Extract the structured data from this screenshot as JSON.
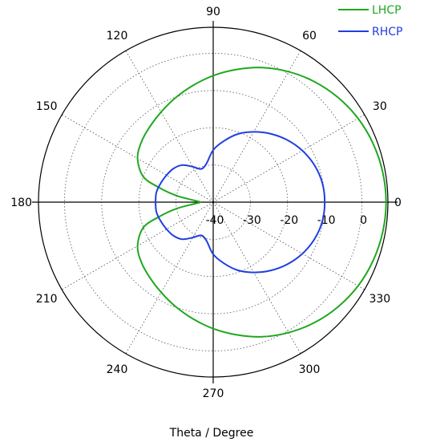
{
  "chart_data": {
    "type": "polar-line",
    "title": "",
    "xlabel": "Theta / Degree",
    "angle_ticks": [
      "0",
      "30",
      "60",
      "90",
      "120",
      "150",
      "180",
      "210",
      "240",
      "270",
      "300",
      "330"
    ],
    "angle_tick_values": [
      0,
      30,
      60,
      90,
      120,
      150,
      180,
      210,
      240,
      270,
      300,
      330
    ],
    "radial_ticks": [
      "-40",
      "-30",
      "-20",
      "-10",
      "0"
    ],
    "radial_tick_values": [
      -40,
      -30,
      -20,
      -10,
      0
    ],
    "rlim": [
      -40,
      7
    ],
    "grid": true,
    "legend_position": "top-right",
    "series": [
      {
        "name": "LHCP",
        "color": "#1fa81f",
        "theta": [
          0,
          10,
          20,
          30,
          40,
          50,
          60,
          70,
          80,
          90,
          100,
          110,
          120,
          130,
          140,
          150,
          160,
          165,
          170,
          175,
          180,
          185,
          190,
          195,
          200,
          210,
          220,
          230,
          240,
          250,
          260,
          270,
          280,
          290,
          300,
          310,
          320,
          330,
          340,
          350,
          360
        ],
        "r": [
          6.5,
          6.3,
          5.8,
          5.0,
          3.8,
          2.3,
          0.5,
          -1.5,
          -3.8,
          -6.0,
          -8.2,
          -10.2,
          -12.0,
          -13.5,
          -14.8,
          -16.5,
          -20,
          -25,
          -30,
          -35,
          -36.5,
          -35,
          -30,
          -25,
          -20,
          -16.5,
          -14.8,
          -13.5,
          -12.0,
          -10.2,
          -8.2,
          -6.0,
          -3.8,
          -1.5,
          0.5,
          2.3,
          3.8,
          5.0,
          5.8,
          6.3,
          6.5
        ]
      },
      {
        "name": "RHCP",
        "color": "#1f3ee0",
        "theta": [
          0,
          10,
          20,
          30,
          40,
          50,
          60,
          70,
          80,
          90,
          100,
          110,
          120,
          130,
          140,
          150,
          160,
          170,
          180,
          190,
          200,
          210,
          220,
          230,
          240,
          250,
          260,
          270,
          280,
          290,
          300,
          310,
          320,
          330,
          340,
          350,
          360
        ],
        "r": [
          -10,
          -10.2,
          -11,
          -12.3,
          -14,
          -16,
          -18.2,
          -20.5,
          -23.3,
          -26,
          -29.5,
          -30.5,
          -29,
          -27,
          -26,
          -25.5,
          -25,
          -24.5,
          -24.5,
          -24.5,
          -25,
          -25.5,
          -26,
          -27,
          -29,
          -30.5,
          -29.5,
          -26,
          -23.3,
          -20.5,
          -18.2,
          -16,
          -14,
          -12.3,
          -11,
          -10.2,
          -10
        ]
      }
    ]
  }
}
